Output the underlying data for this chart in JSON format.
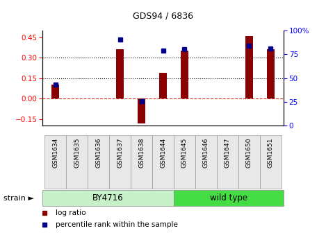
{
  "title": "GDS94 / 6836",
  "samples": [
    "GSM1634",
    "GSM1635",
    "GSM1636",
    "GSM1637",
    "GSM1638",
    "GSM1644",
    "GSM1645",
    "GSM1646",
    "GSM1647",
    "GSM1650",
    "GSM1651"
  ],
  "log_ratio": [
    0.1,
    0.0,
    0.0,
    0.36,
    -0.18,
    0.19,
    0.35,
    0.0,
    0.0,
    0.46,
    0.36
  ],
  "percentile_rank": [
    43,
    null,
    null,
    90,
    26,
    79,
    80,
    null,
    null,
    84,
    81
  ],
  "groups": [
    {
      "label": "BY4716",
      "indices": [
        0,
        1,
        2,
        3,
        4,
        5
      ],
      "color": "#C8F0C8"
    },
    {
      "label": "wild type",
      "indices": [
        6,
        7,
        8,
        9,
        10
      ],
      "color": "#44DD44"
    }
  ],
  "bar_color": "#8B0000",
  "dot_color": "#00008B",
  "ylim_left": [
    -0.2,
    0.5
  ],
  "ylim_right": [
    0,
    100
  ],
  "yticks_left": [
    -0.15,
    0.0,
    0.15,
    0.3,
    0.45
  ],
  "yticks_right": [
    0,
    25,
    50,
    75,
    100
  ],
  "hlines_dotted": [
    0.15,
    0.3
  ],
  "hline_dashed": 0.0,
  "background_color": "#ffffff",
  "legend_items": [
    {
      "label": "log ratio",
      "color": "#8B0000"
    },
    {
      "label": "percentile rank within the sample",
      "color": "#00008B"
    }
  ],
  "strain_label": "strain ►",
  "figsize": [
    4.69,
    3.36
  ],
  "dpi": 100,
  "group_split": 5.5
}
